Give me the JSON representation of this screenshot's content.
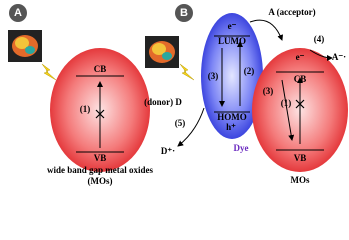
{
  "panel_a": {
    "label": "A",
    "cb": "CB",
    "vb": "VB",
    "step": "(1)",
    "caption": [
      "wide band gap metal oxides",
      "(MOs)"
    ]
  },
  "panel_b": {
    "label": "B",
    "dye_electron": "e⁻",
    "lumo": "LUMO",
    "homo": "HOMO",
    "hole": "h⁺",
    "dye": "Dye",
    "dye_steps": [
      "(3)",
      "(2)"
    ],
    "donor": "(donor) D",
    "donor_step": "(5)",
    "donor_oxidized": "D⁺·",
    "acceptor": "A (acceptor)",
    "acceptor_step": "(4)",
    "acceptor_reduced": "A⁻·",
    "mo_electron": "e⁻",
    "cb": "CB",
    "vb": "VB",
    "mo_steps": [
      "(1)",
      "(3)"
    ],
    "mo": "MOs"
  }
}
